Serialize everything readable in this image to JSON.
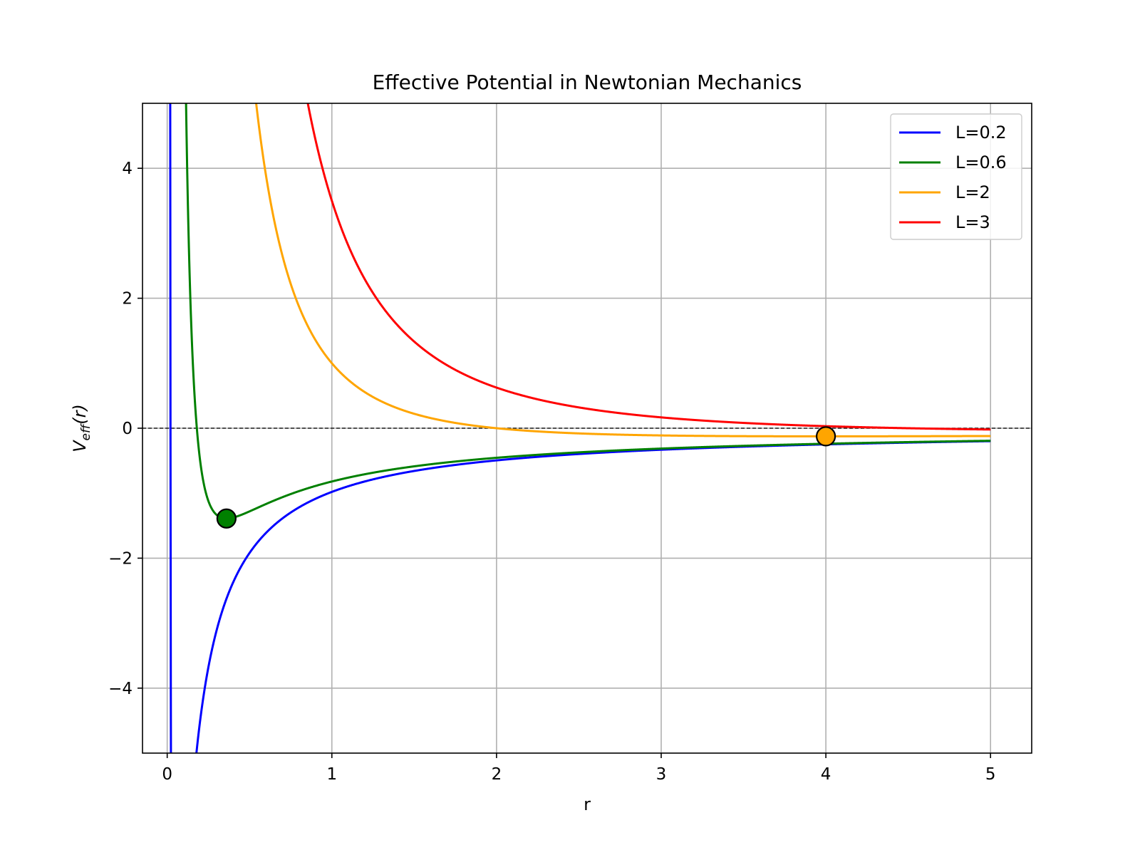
{
  "chart_data": {
    "type": "line",
    "title": "Effective Potential in Newtonian Mechanics",
    "xlabel": "r",
    "ylabel": {
      "main": "V",
      "sub": "eff",
      "suffix": "(r)"
    },
    "xlim": [
      -0.15,
      5.25
    ],
    "ylim": [
      -5,
      5
    ],
    "xticks": [
      0,
      1,
      2,
      3,
      4,
      5
    ],
    "yticks": [
      -4,
      -2,
      0,
      2,
      4
    ],
    "xtick_labels": [
      "0",
      "1",
      "2",
      "3",
      "4",
      "5"
    ],
    "ytick_labels": [
      "−4",
      "−2",
      "0",
      "2",
      "4"
    ],
    "grid": true,
    "legend_position": "upper right",
    "reference_line": {
      "y": 0,
      "style": "dashed",
      "color": "#000000"
    },
    "model": "V(r) = L^2/(2 r^2) - 1/r",
    "r_range": [
      0.01,
      5
    ],
    "series": [
      {
        "name": "L=0.2",
        "L": 0.2,
        "color": "#0000ff"
      },
      {
        "name": "L=0.6",
        "L": 0.6,
        "color": "#008000"
      },
      {
        "name": "L=2",
        "L": 2,
        "color": "#ffa500"
      },
      {
        "name": "L=3",
        "L": 3,
        "color": "#ff0000"
      }
    ],
    "markers": [
      {
        "series": "L=0.6",
        "x": 0.36,
        "y": -1.39,
        "color": "#008000"
      },
      {
        "series": "L=2",
        "x": 4.0,
        "y": -0.125,
        "color": "#ffa500"
      }
    ]
  }
}
